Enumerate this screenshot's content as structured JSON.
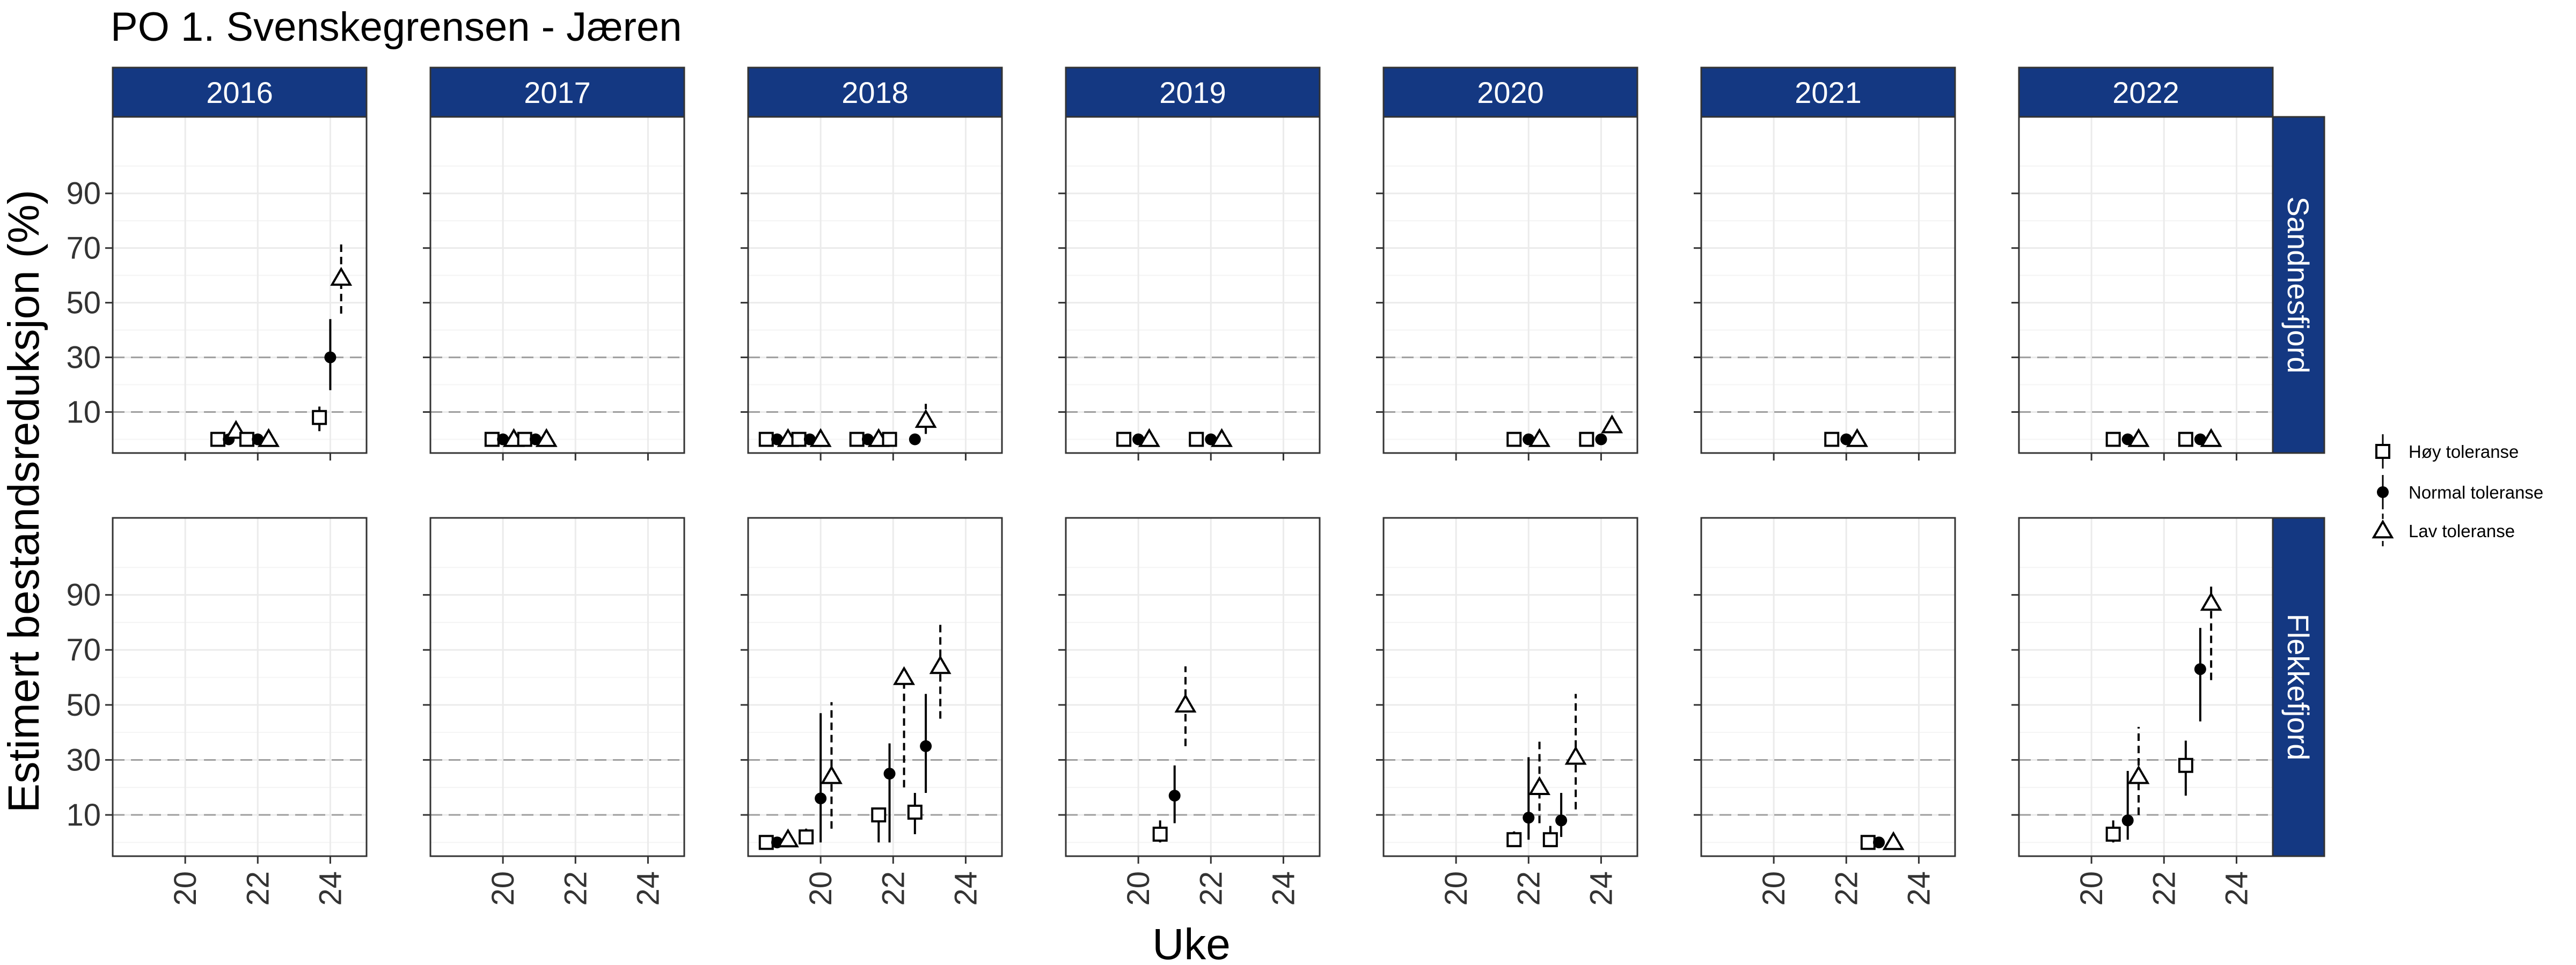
{
  "chart_data": {
    "type": "scatter",
    "title": "PO 1. Svenskegrensen - Jæren",
    "xlabel": "Uke",
    "ylabel": "Estimert bestandsreduksjon (%)",
    "xlim": [
      18,
      25
    ],
    "ylim": [
      -5,
      118
    ],
    "x_ticks": [
      20,
      22,
      24
    ],
    "y_ticks": [
      10,
      30,
      50,
      70,
      90
    ],
    "reference_lines": [
      10,
      30
    ],
    "years": [
      "2016",
      "2017",
      "2018",
      "2019",
      "2020",
      "2021",
      "2022"
    ],
    "regions": [
      "Sandnesfjord",
      "Flekkefjord"
    ],
    "series": [
      {
        "name": "Høy toleranse",
        "marker": "square",
        "line": "solid"
      },
      {
        "name": "Normal toleranse",
        "marker": "circle",
        "line": "solid"
      },
      {
        "name": "Lav toleranse",
        "marker": "triangle",
        "line": "dashed"
      }
    ],
    "points": [
      {
        "year": "2016",
        "region": "Sandnesfjord",
        "series": "Høy toleranse",
        "x": 20.9,
        "y": 0
      },
      {
        "year": "2016",
        "region": "Sandnesfjord",
        "series": "Normal toleranse",
        "x": 21.2,
        "y": 0
      },
      {
        "year": "2016",
        "region": "Sandnesfjord",
        "series": "Lav toleranse",
        "x": 21.4,
        "y": 3
      },
      {
        "year": "2016",
        "region": "Sandnesfjord",
        "series": "Høy toleranse",
        "x": 21.7,
        "y": 0
      },
      {
        "year": "2016",
        "region": "Sandnesfjord",
        "series": "Normal toleranse",
        "x": 22.0,
        "y": 0
      },
      {
        "year": "2016",
        "region": "Sandnesfjord",
        "series": "Lav toleranse",
        "x": 22.3,
        "y": 0
      },
      {
        "year": "2016",
        "region": "Sandnesfjord",
        "series": "Høy toleranse",
        "x": 23.7,
        "y": 8,
        "lo": 3,
        "hi": 12
      },
      {
        "year": "2016",
        "region": "Sandnesfjord",
        "series": "Normal toleranse",
        "x": 24.0,
        "y": 30,
        "lo": 18,
        "hi": 44
      },
      {
        "year": "2016",
        "region": "Sandnesfjord",
        "series": "Lav toleranse",
        "x": 24.3,
        "y": 59,
        "lo": 46,
        "hi": 73
      },
      {
        "year": "2017",
        "region": "Sandnesfjord",
        "series": "Høy toleranse",
        "x": 19.7,
        "y": 0
      },
      {
        "year": "2017",
        "region": "Sandnesfjord",
        "series": "Normal toleranse",
        "x": 20.0,
        "y": 0
      },
      {
        "year": "2017",
        "region": "Sandnesfjord",
        "series": "Lav toleranse",
        "x": 20.3,
        "y": 0
      },
      {
        "year": "2017",
        "region": "Sandnesfjord",
        "series": "Høy toleranse",
        "x": 20.6,
        "y": 0
      },
      {
        "year": "2017",
        "region": "Sandnesfjord",
        "series": "Normal toleranse",
        "x": 20.9,
        "y": 0
      },
      {
        "year": "2017",
        "region": "Sandnesfjord",
        "series": "Lav toleranse",
        "x": 21.2,
        "y": 0
      },
      {
        "year": "2018",
        "region": "Sandnesfjord",
        "series": "Høy toleranse",
        "x": 18.5,
        "y": 0
      },
      {
        "year": "2018",
        "region": "Sandnesfjord",
        "series": "Normal toleranse",
        "x": 18.8,
        "y": 0
      },
      {
        "year": "2018",
        "region": "Sandnesfjord",
        "series": "Lav toleranse",
        "x": 19.1,
        "y": 0
      },
      {
        "year": "2018",
        "region": "Sandnesfjord",
        "series": "Høy toleranse",
        "x": 19.4,
        "y": 0
      },
      {
        "year": "2018",
        "region": "Sandnesfjord",
        "series": "Normal toleranse",
        "x": 19.7,
        "y": 0
      },
      {
        "year": "2018",
        "region": "Sandnesfjord",
        "series": "Lav toleranse",
        "x": 20.0,
        "y": 0
      },
      {
        "year": "2018",
        "region": "Sandnesfjord",
        "series": "Høy toleranse",
        "x": 21.0,
        "y": 0
      },
      {
        "year": "2018",
        "region": "Sandnesfjord",
        "series": "Normal toleranse",
        "x": 21.3,
        "y": 0
      },
      {
        "year": "2018",
        "region": "Sandnesfjord",
        "series": "Lav toleranse",
        "x": 21.6,
        "y": 0
      },
      {
        "year": "2018",
        "region": "Sandnesfjord",
        "series": "Høy toleranse",
        "x": 21.9,
        "y": 0
      },
      {
        "year": "2018",
        "region": "Sandnesfjord",
        "series": "Normal toleranse",
        "x": 22.6,
        "y": 0
      },
      {
        "year": "2018",
        "region": "Sandnesfjord",
        "series": "Lav toleranse",
        "x": 22.9,
        "y": 7,
        "lo": 2,
        "hi": 13
      },
      {
        "year": "2019",
        "region": "Sandnesfjord",
        "series": "Høy toleranse",
        "x": 19.6,
        "y": 0
      },
      {
        "year": "2019",
        "region": "Sandnesfjord",
        "series": "Normal toleranse",
        "x": 20.0,
        "y": 0
      },
      {
        "year": "2019",
        "region": "Sandnesfjord",
        "series": "Lav toleranse",
        "x": 20.3,
        "y": 0
      },
      {
        "year": "2019",
        "region": "Sandnesfjord",
        "series": "Høy toleranse",
        "x": 21.6,
        "y": 0
      },
      {
        "year": "2019",
        "region": "Sandnesfjord",
        "series": "Normal toleranse",
        "x": 22.0,
        "y": 0
      },
      {
        "year": "2019",
        "region": "Sandnesfjord",
        "series": "Lav toleranse",
        "x": 22.3,
        "y": 0
      },
      {
        "year": "2020",
        "region": "Sandnesfjord",
        "series": "Høy toleranse",
        "x": 21.6,
        "y": 0
      },
      {
        "year": "2020",
        "region": "Sandnesfjord",
        "series": "Normal toleranse",
        "x": 22.0,
        "y": 0
      },
      {
        "year": "2020",
        "region": "Sandnesfjord",
        "series": "Lav toleranse",
        "x": 22.3,
        "y": 0
      },
      {
        "year": "2020",
        "region": "Sandnesfjord",
        "series": "Høy toleranse",
        "x": 23.6,
        "y": 0
      },
      {
        "year": "2020",
        "region": "Sandnesfjord",
        "series": "Normal toleranse",
        "x": 24.0,
        "y": 0
      },
      {
        "year": "2020",
        "region": "Sandnesfjord",
        "series": "Lav toleranse",
        "x": 24.3,
        "y": 5
      },
      {
        "year": "2021",
        "region": "Sandnesfjord",
        "series": "Høy toleranse",
        "x": 21.6,
        "y": 0
      },
      {
        "year": "2021",
        "region": "Sandnesfjord",
        "series": "Normal toleranse",
        "x": 22.0,
        "y": 0
      },
      {
        "year": "2021",
        "region": "Sandnesfjord",
        "series": "Lav toleranse",
        "x": 22.3,
        "y": 0
      },
      {
        "year": "2022",
        "region": "Sandnesfjord",
        "series": "Høy toleranse",
        "x": 20.6,
        "y": 0
      },
      {
        "year": "2022",
        "region": "Sandnesfjord",
        "series": "Normal toleranse",
        "x": 21.0,
        "y": 0
      },
      {
        "year": "2022",
        "region": "Sandnesfjord",
        "series": "Lav toleranse",
        "x": 21.3,
        "y": 0
      },
      {
        "year": "2022",
        "region": "Sandnesfjord",
        "series": "Høy toleranse",
        "x": 22.6,
        "y": 0
      },
      {
        "year": "2022",
        "region": "Sandnesfjord",
        "series": "Normal toleranse",
        "x": 23.0,
        "y": 0
      },
      {
        "year": "2022",
        "region": "Sandnesfjord",
        "series": "Lav toleranse",
        "x": 23.3,
        "y": 0
      },
      {
        "year": "2018",
        "region": "Flekkefjord",
        "series": "Høy toleranse",
        "x": 18.5,
        "y": 0
      },
      {
        "year": "2018",
        "region": "Flekkefjord",
        "series": "Normal toleranse",
        "x": 18.8,
        "y": 0
      },
      {
        "year": "2018",
        "region": "Flekkefjord",
        "series": "Lav toleranse",
        "x": 19.1,
        "y": 1
      },
      {
        "year": "2018",
        "region": "Flekkefjord",
        "series": "Høy toleranse",
        "x": 19.6,
        "y": 2,
        "lo": 0,
        "hi": 5
      },
      {
        "year": "2018",
        "region": "Flekkefjord",
        "series": "Normal toleranse",
        "x": 20.0,
        "y": 16,
        "lo": 0,
        "hi": 47
      },
      {
        "year": "2018",
        "region": "Flekkefjord",
        "series": "Lav toleranse",
        "x": 20.3,
        "y": 24,
        "lo": 5,
        "hi": 51
      },
      {
        "year": "2018",
        "region": "Flekkefjord",
        "series": "Høy toleranse",
        "x": 21.6,
        "y": 10,
        "lo": 0,
        "hi": 12
      },
      {
        "year": "2018",
        "region": "Flekkefjord",
        "series": "Normal toleranse",
        "x": 21.9,
        "y": 25,
        "lo": 0,
        "hi": 36
      },
      {
        "year": "2018",
        "region": "Flekkefjord",
        "series": "Lav toleranse",
        "x": 22.3,
        "y": 60,
        "lo": 20,
        "hi": 63
      },
      {
        "year": "2018",
        "region": "Flekkefjord",
        "series": "Høy toleranse",
        "x": 22.6,
        "y": 11,
        "lo": 3,
        "hi": 18
      },
      {
        "year": "2018",
        "region": "Flekkefjord",
        "series": "Normal toleranse",
        "x": 22.9,
        "y": 35,
        "lo": 18,
        "hi": 54
      },
      {
        "year": "2018",
        "region": "Flekkefjord",
        "series": "Lav toleranse",
        "x": 23.3,
        "y": 64,
        "lo": 45,
        "hi": 80
      },
      {
        "year": "2019",
        "region": "Flekkefjord",
        "series": "Høy toleranse",
        "x": 20.6,
        "y": 3,
        "lo": 0,
        "hi": 8
      },
      {
        "year": "2019",
        "region": "Flekkefjord",
        "series": "Normal toleranse",
        "x": 21.0,
        "y": 17,
        "lo": 7,
        "hi": 28
      },
      {
        "year": "2019",
        "region": "Flekkefjord",
        "series": "Lav toleranse",
        "x": 21.3,
        "y": 50,
        "lo": 35,
        "hi": 64
      },
      {
        "year": "2020",
        "region": "Flekkefjord",
        "series": "Høy toleranse",
        "x": 21.6,
        "y": 1,
        "lo": 0,
        "hi": 4
      },
      {
        "year": "2020",
        "region": "Flekkefjord",
        "series": "Normal toleranse",
        "x": 22.0,
        "y": 9,
        "lo": 1,
        "hi": 31
      },
      {
        "year": "2020",
        "region": "Flekkefjord",
        "series": "Lav toleranse",
        "x": 22.3,
        "y": 20,
        "lo": 7,
        "hi": 37
      },
      {
        "year": "2020",
        "region": "Flekkefjord",
        "series": "Høy toleranse",
        "x": 22.6,
        "y": 1,
        "lo": 0,
        "hi": 6
      },
      {
        "year": "2020",
        "region": "Flekkefjord",
        "series": "Normal toleranse",
        "x": 22.9,
        "y": 8,
        "lo": 2,
        "hi": 18
      },
      {
        "year": "2020",
        "region": "Flekkefjord",
        "series": "Lav toleranse",
        "x": 23.3,
        "y": 31,
        "lo": 12,
        "hi": 54
      },
      {
        "year": "2021",
        "region": "Flekkefjord",
        "series": "Høy toleranse",
        "x": 22.6,
        "y": 0
      },
      {
        "year": "2021",
        "region": "Flekkefjord",
        "series": "Normal toleranse",
        "x": 22.9,
        "y": 0
      },
      {
        "year": "2021",
        "region": "Flekkefjord",
        "series": "Lav toleranse",
        "x": 23.3,
        "y": 0
      },
      {
        "year": "2022",
        "region": "Flekkefjord",
        "series": "Høy toleranse",
        "x": 20.6,
        "y": 3,
        "lo": 0,
        "hi": 8
      },
      {
        "year": "2022",
        "region": "Flekkefjord",
        "series": "Normal toleranse",
        "x": 21.0,
        "y": 8,
        "lo": 1,
        "hi": 26
      },
      {
        "year": "2022",
        "region": "Flekkefjord",
        "series": "Lav toleranse",
        "x": 21.3,
        "y": 24,
        "lo": 10,
        "hi": 42
      },
      {
        "year": "2022",
        "region": "Flekkefjord",
        "series": "Høy toleranse",
        "x": 22.6,
        "y": 28,
        "lo": 17,
        "hi": 37
      },
      {
        "year": "2022",
        "region": "Flekkefjord",
        "series": "Normal toleranse",
        "x": 23.0,
        "y": 63,
        "lo": 44,
        "hi": 78
      },
      {
        "year": "2022",
        "region": "Flekkefjord",
        "series": "Lav toleranse",
        "x": 23.3,
        "y": 87,
        "lo": 59,
        "hi": 93
      }
    ],
    "grid": true,
    "legend": "right",
    "colors": {
      "strip_fill": "#143882",
      "strip_text": "#ffffff",
      "panel_border": "#333333",
      "grid_major": "#ebebeb",
      "grid_minor": "#f4f4f4",
      "reference_line": "#9e9e9e",
      "marker": "#000000"
    }
  }
}
